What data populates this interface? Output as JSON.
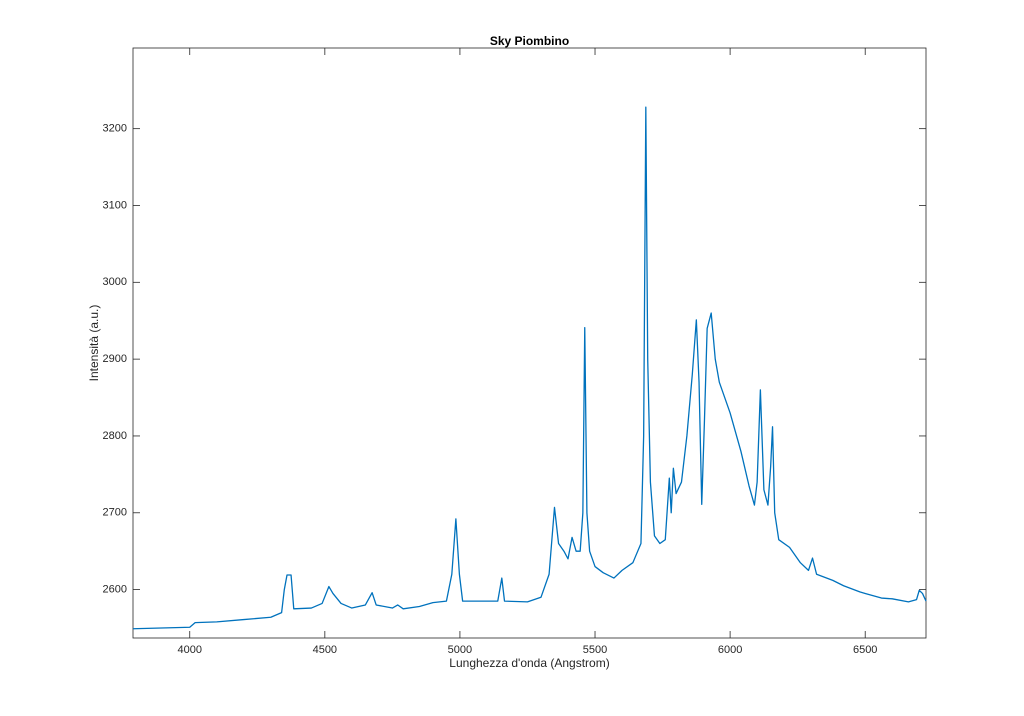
{
  "chart_data": {
    "type": "line",
    "title": "Sky Piombino",
    "x_label": "Lunghezza d'onda (Angstrom)",
    "y_label": "Intensità (a.u.)",
    "xlim": [
      3790,
      6725
    ],
    "ylim": [
      2537,
      3305
    ],
    "xticks": [
      4000,
      4500,
      5000,
      5500,
      6000,
      6500
    ],
    "yticks": [
      2600,
      2700,
      2800,
      2900,
      3000,
      3100,
      3200
    ],
    "color": "#0072bd",
    "x": [
      3790,
      4000,
      4020,
      4100,
      4200,
      4300,
      4340,
      4350,
      4360,
      4375,
      4385,
      4450,
      4490,
      4515,
      4530,
      4560,
      4600,
      4650,
      4675,
      4690,
      4750,
      4770,
      4790,
      4850,
      4900,
      4950,
      4970,
      4985,
      4998,
      5010,
      5080,
      5140,
      5155,
      5165,
      5250,
      5300,
      5330,
      5350,
      5365,
      5385,
      5400,
      5415,
      5430,
      5445,
      5455,
      5462,
      5470,
      5480,
      5500,
      5530,
      5570,
      5600,
      5640,
      5670,
      5680,
      5688,
      5695,
      5705,
      5720,
      5740,
      5760,
      5775,
      5782,
      5790,
      5800,
      5820,
      5840,
      5860,
      5875,
      5885,
      5895,
      5905,
      5915,
      5930,
      5945,
      5960,
      6000,
      6040,
      6070,
      6090,
      6100,
      6112,
      6125,
      6140,
      6150,
      6157,
      6165,
      6180,
      6220,
      6260,
      6290,
      6305,
      6320,
      6380,
      6420,
      6480,
      6500,
      6560,
      6600,
      6660,
      6690,
      6700,
      6712,
      6725
    ],
    "values": [
      2549,
      2551,
      2557,
      2558,
      2561,
      2564,
      2570,
      2600,
      2619,
      2619,
      2575,
      2576,
      2582,
      2604,
      2595,
      2582,
      2576,
      2580,
      2596,
      2580,
      2576,
      2580,
      2575,
      2578,
      2583,
      2585,
      2620,
      2692,
      2620,
      2585,
      2585,
      2585,
      2615,
      2585,
      2584,
      2590,
      2620,
      2707,
      2660,
      2650,
      2640,
      2668,
      2650,
      2650,
      2700,
      2941,
      2700,
      2650,
      2630,
      2622,
      2615,
      2625,
      2635,
      2660,
      2800,
      3228,
      2900,
      2740,
      2670,
      2660,
      2665,
      2745,
      2700,
      2758,
      2725,
      2740,
      2800,
      2880,
      2951,
      2870,
      2711,
      2820,
      2940,
      2960,
      2900,
      2870,
      2830,
      2780,
      2735,
      2710,
      2740,
      2860,
      2730,
      2710,
      2760,
      2812,
      2700,
      2665,
      2655,
      2635,
      2625,
      2641,
      2620,
      2612,
      2605,
      2597,
      2595,
      2589,
      2588,
      2584,
      2587,
      2599,
      2595,
      2585
    ]
  }
}
